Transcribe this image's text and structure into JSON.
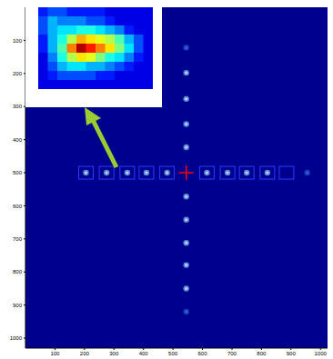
{
  "chart_data": [
    {
      "type": "scatter",
      "xlim": [
        0,
        1024
      ],
      "ylim": [
        1030,
        0
      ],
      "xticks": [
        100,
        200,
        300,
        400,
        500,
        600,
        700,
        800,
        900,
        1000
      ],
      "yticks": [
        100,
        200,
        300,
        400,
        500,
        600,
        700,
        800,
        900,
        1000
      ],
      "grid": false,
      "series": [
        {
          "color": "#a8d8ff",
          "marker": "circle",
          "x": [
            205,
            275,
            345,
            410,
            480,
            615,
            685,
            750,
            820,
            545,
            545,
            545,
            545,
            545,
            545,
            545,
            545,
            545
          ],
          "y": [
            500,
            500,
            500,
            500,
            500,
            500,
            500,
            500,
            500,
            198,
            277,
            353,
            423,
            572,
            642,
            712,
            779,
            850
          ]
        },
        {
          "color": "#3060d0",
          "marker": "circle",
          "x": [
            545,
            545,
            955
          ],
          "y": [
            122,
            920,
            500
          ]
        },
        {
          "color": "#2a3cff",
          "marker": "square",
          "x": [
            205,
            275,
            345,
            410,
            480,
            615,
            685,
            750,
            820,
            885
          ],
          "y": [
            500,
            500,
            500,
            500,
            500,
            500,
            500,
            500,
            500,
            500
          ]
        },
        {
          "color": "#ff0000",
          "marker": "plus",
          "x": [
            545
          ],
          "y": [
            500
          ]
        }
      ]
    },
    {
      "type": "heatmap",
      "xlim": [
        0.5,
        12.5
      ],
      "ylim": [
        9.5,
        0.5
      ],
      "tick_labels": false,
      "grid": false,
      "zlim": [
        0,
        1
      ],
      "cells": [
        [
          0.15,
          0.2,
          0.2,
          0.15,
          0.15,
          0.15,
          0.15,
          0.1,
          0.1,
          0.1,
          0.1,
          0.1
        ],
        [
          0.2,
          0.3,
          0.25,
          0.25,
          0.25,
          0.2,
          0.2,
          0.15,
          0.1,
          0.1,
          0.1,
          0.1
        ],
        [
          0.2,
          0.3,
          0.35,
          0.35,
          0.4,
          0.4,
          0.35,
          0.3,
          0.25,
          0.15,
          0.1,
          0.1
        ],
        [
          0.15,
          0.3,
          0.4,
          0.55,
          0.7,
          0.65,
          0.6,
          0.55,
          0.45,
          0.3,
          0.2,
          0.1
        ],
        [
          0.15,
          0.3,
          0.45,
          0.75,
          0.95,
          0.85,
          0.75,
          0.65,
          0.5,
          0.35,
          0.2,
          0.1
        ],
        [
          0.1,
          0.25,
          0.4,
          0.55,
          0.65,
          0.6,
          0.5,
          0.4,
          0.35,
          0.25,
          0.15,
          0.1
        ],
        [
          0.1,
          0.2,
          0.3,
          0.35,
          0.35,
          0.3,
          0.3,
          0.25,
          0.2,
          0.15,
          0.1,
          0.1
        ],
        [
          0.1,
          0.15,
          0.2,
          0.2,
          0.2,
          0.2,
          0.15,
          0.15,
          0.1,
          0.1,
          0.1,
          0.1
        ],
        [
          0.1,
          0.1,
          0.1,
          0.1,
          0.1,
          0.1,
          0.1,
          0.1,
          0.1,
          0.1,
          0.1,
          0.1
        ]
      ]
    }
  ]
}
